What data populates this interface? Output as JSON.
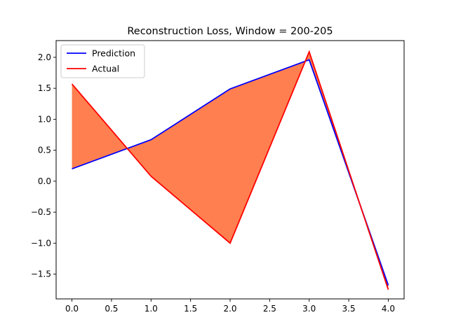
{
  "chart_data": {
    "type": "line",
    "title": "Reconstruction Loss, Window = 200-205",
    "xlabel": "",
    "ylabel": "",
    "x": [
      0,
      1,
      2,
      3,
      4
    ],
    "xlim": [
      -0.2,
      4.2
    ],
    "ylim": [
      -1.9,
      2.27
    ],
    "xticks": [
      0,
      0.5,
      1,
      1.5,
      2,
      2.5,
      3,
      3.5,
      4
    ],
    "xtick_labels": [
      "0.0",
      "0.5",
      "1.0",
      "1.5",
      "2.0",
      "2.5",
      "3.0",
      "3.5",
      "4.0"
    ],
    "yticks": [
      -1.5,
      -1,
      -0.5,
      0,
      0.5,
      1,
      1.5,
      2
    ],
    "ytick_labels": [
      "−1.5",
      "−1.0",
      "−0.5",
      "0.0",
      "0.5",
      "1.0",
      "1.5",
      "2.0"
    ],
    "series": [
      {
        "name": "Prediction",
        "color": "#0000ff",
        "values": [
          0.2,
          0.67,
          1.49,
          1.96,
          -1.68
        ]
      },
      {
        "name": "Actual",
        "color": "#ff0000",
        "values": [
          1.57,
          0.08,
          -1.0,
          2.09,
          -1.75
        ]
      }
    ],
    "fill_between": {
      "color": "#ff7f50",
      "between": [
        "Prediction",
        "Actual"
      ]
    },
    "legend": "upper left",
    "grid": false
  }
}
